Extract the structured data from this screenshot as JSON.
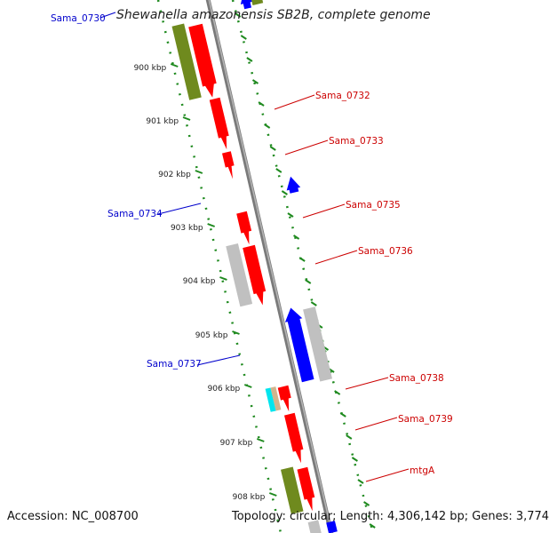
{
  "title": "Shewanella amazonensis SB2B, complete genome",
  "footer": {
    "accession": "Accession: NC_008700",
    "summary": "Topology: circular; Length: 4,306,142 bp; Genes: 3,774"
  },
  "ruler": [
    "900 kbp",
    "901 kbp",
    "902 kbp",
    "903 kbp",
    "904 kbp",
    "905 kbp",
    "906 kbp",
    "907 kbp",
    "908 kbp"
  ],
  "gene_labels": [
    {
      "text": "Sama_0730",
      "color": "#0000cc"
    },
    {
      "text": "Sama_0732",
      "color": "#cc0000"
    },
    {
      "text": "Sama_0733",
      "color": "#cc0000"
    },
    {
      "text": "Sama_0734",
      "color": "#0000cc"
    },
    {
      "text": "Sama_0735",
      "color": "#cc0000"
    },
    {
      "text": "Sama_0736",
      "color": "#cc0000"
    },
    {
      "text": "Sama_0737",
      "color": "#0000cc"
    },
    {
      "text": "Sama_0738",
      "color": "#cc0000"
    },
    {
      "text": "Sama_0739",
      "color": "#cc0000"
    },
    {
      "text": "mtgA",
      "color": "#cc0000"
    }
  ],
  "colors": {
    "backbone": "#7a7a7a",
    "forward_cds": "#ff0000",
    "reverse_cds": "#0000ff",
    "other_feature": "#c0c0c0",
    "olive_feature": "#6f8a1e",
    "cyan_feature": "#00e5ee",
    "tan_feature": "#d2b48c",
    "tick": "#1f8a1f"
  }
}
